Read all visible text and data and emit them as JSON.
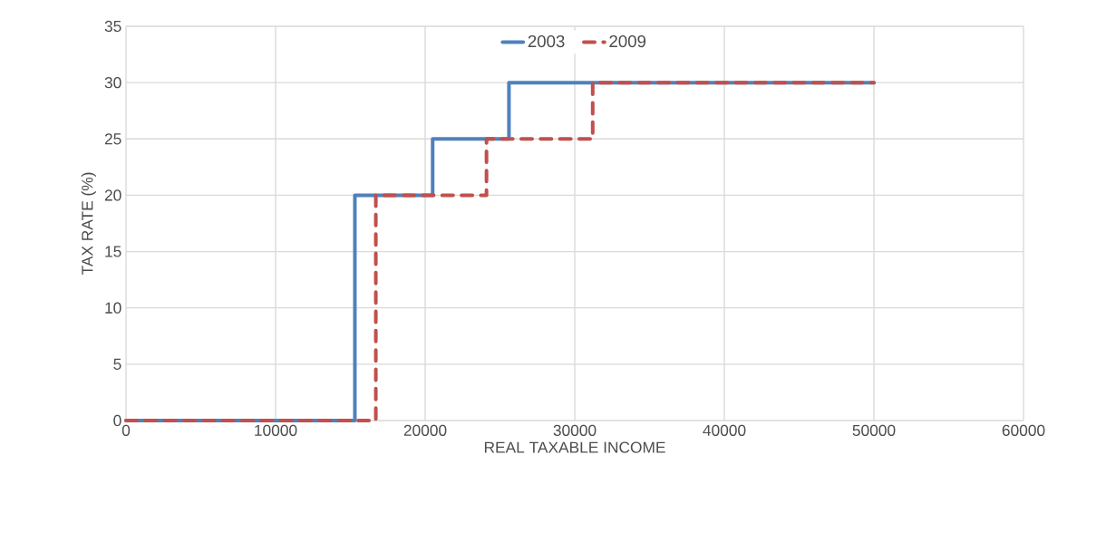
{
  "chart_data": {
    "type": "step",
    "xlabel": "REAL TAXABLE INCOME",
    "ylabel": "TAX RATE (%)",
    "series": [
      {
        "name": "2003",
        "color": "#4f81bd",
        "line_style": "solid",
        "x": [
          0,
          15300,
          20500,
          25600,
          50000
        ],
        "values": [
          0,
          20,
          25,
          30,
          30
        ]
      },
      {
        "name": "2009",
        "color": "#c0504d",
        "line_style": "dashed",
        "x": [
          0,
          16700,
          24100,
          31200,
          50000
        ],
        "values": [
          0,
          20,
          25,
          30,
          30
        ]
      }
    ],
    "xlim": [
      0,
      60000
    ],
    "xticks": [
      0,
      10000,
      20000,
      30000,
      40000,
      50000,
      60000
    ],
    "ylim": [
      0,
      35
    ],
    "yticks": [
      0,
      5,
      10,
      15,
      20,
      25,
      30,
      35
    ],
    "grid": true,
    "legend": "top",
    "marker": "none"
  }
}
